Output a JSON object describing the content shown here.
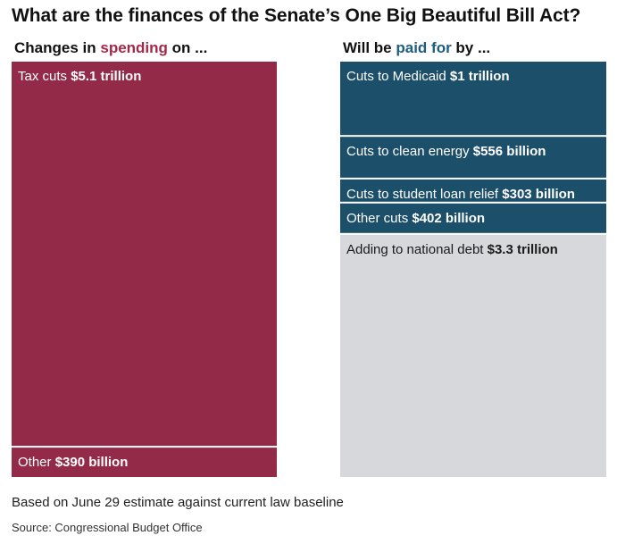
{
  "title": "What are the finances of the Senate’s One Big Beautiful Bill Act?",
  "left_header": {
    "pre": "Changes in ",
    "highlight": "spending",
    "post": " on ..."
  },
  "right_header": {
    "pre": "Will be ",
    "highlight": "paid for",
    "post": " by ..."
  },
  "colors": {
    "spending": "#922a48",
    "paid_for": "#1b4f6a",
    "debt": "#d6d8dc",
    "spending_text": "#a3284a",
    "paid_for_text": "#1c5d80",
    "light_label": "#ffffff",
    "dark_label": "#1a1a1a"
  },
  "chart_data": {
    "type": "treemap",
    "unit": "trillion USD",
    "columns": [
      {
        "name": "spending",
        "segments": [
          {
            "label": "Tax cuts",
            "amount_text": "$5.1 trillion",
            "value": 5.1,
            "color_key": "spending",
            "text_key": "light_label"
          },
          {
            "label": "Other",
            "amount_text": "$390 billion",
            "value": 0.39,
            "color_key": "spending",
            "text_key": "light_label"
          }
        ]
      },
      {
        "name": "paid_for",
        "segments": [
          {
            "label": "Cuts to Medicaid",
            "amount_text": "$1 trillion",
            "value": 1.0,
            "color_key": "paid_for",
            "text_key": "light_label"
          },
          {
            "label": "Cuts to clean energy",
            "amount_text": "$556 billion",
            "value": 0.556,
            "color_key": "paid_for",
            "text_key": "light_label"
          },
          {
            "label": "Cuts to student loan relief",
            "amount_text": "$303 billion",
            "value": 0.303,
            "color_key": "paid_for",
            "text_key": "light_label"
          },
          {
            "label": "Other cuts",
            "amount_text": "$402 billion",
            "value": 0.402,
            "color_key": "paid_for",
            "text_key": "light_label"
          },
          {
            "label": "Adding to national debt",
            "amount_text": "$3.3 trillion",
            "value": 3.3,
            "color_key": "debt",
            "text_key": "dark_label"
          }
        ]
      }
    ]
  },
  "note": "Based on June 29 estimate against current law baseline",
  "source": "Source: Congressional Budget Office"
}
